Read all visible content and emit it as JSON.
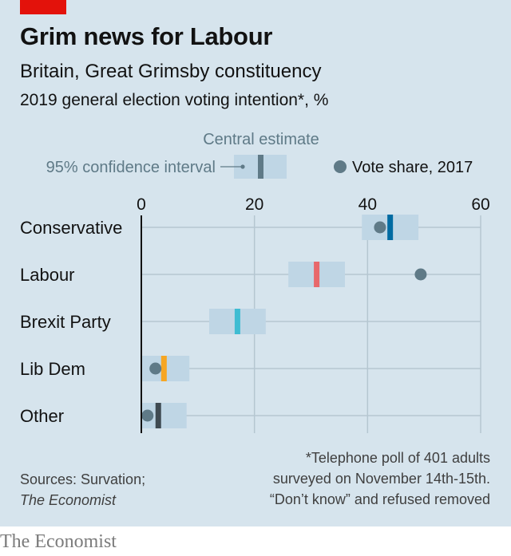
{
  "header": {
    "title": "Grim news for Labour",
    "subtitle": "Britain, Great Grimsby constituency",
    "subtitle2": "2019 general election voting intention*, %"
  },
  "legend": {
    "central_estimate": "Central estimate",
    "confidence_interval": "95% confidence interval",
    "vote_share_2017": "Vote share, 2017"
  },
  "footer": {
    "sources_line1": "Sources: Survation;",
    "sources_line2": "The Economist",
    "footnote_lines": [
      "*Telephone poll of 401 adults",
      "surveyed on November 14th-15th.",
      "“Don’t know” and refused removed"
    ],
    "brand": "The Economist"
  },
  "colors": {
    "background": "#d6e4ed",
    "ci_band": "#bfd6e5",
    "gridline": "#b5c6d1",
    "marker_2017": "#5f7a87",
    "accent_red": "#e3120b"
  },
  "chart_data": {
    "type": "dot-range",
    "xlim": [
      0,
      60
    ],
    "x_ticks": [
      "0",
      "20",
      "40",
      "60"
    ],
    "categories": [
      "Conservative",
      "Labour",
      "Brexit Party",
      "Lib Dem",
      "Other"
    ],
    "series": [
      {
        "name": "Central estimate",
        "values": [
          44,
          31,
          17,
          4,
          3
        ],
        "colors": [
          "#006ba2",
          "#e8686b",
          "#3ebcd2",
          "#f6a623",
          "#3f4a51"
        ]
      },
      {
        "name": "95% confidence interval",
        "low": [
          39,
          26,
          12,
          0,
          0
        ],
        "high": [
          49,
          36,
          22,
          8.5,
          8
        ]
      },
      {
        "name": "Vote share, 2017",
        "values": [
          42.2,
          49.4,
          0,
          2.5,
          1.1
        ]
      }
    ],
    "markers_2017_shown": [
      true,
      true,
      false,
      true,
      true
    ]
  }
}
